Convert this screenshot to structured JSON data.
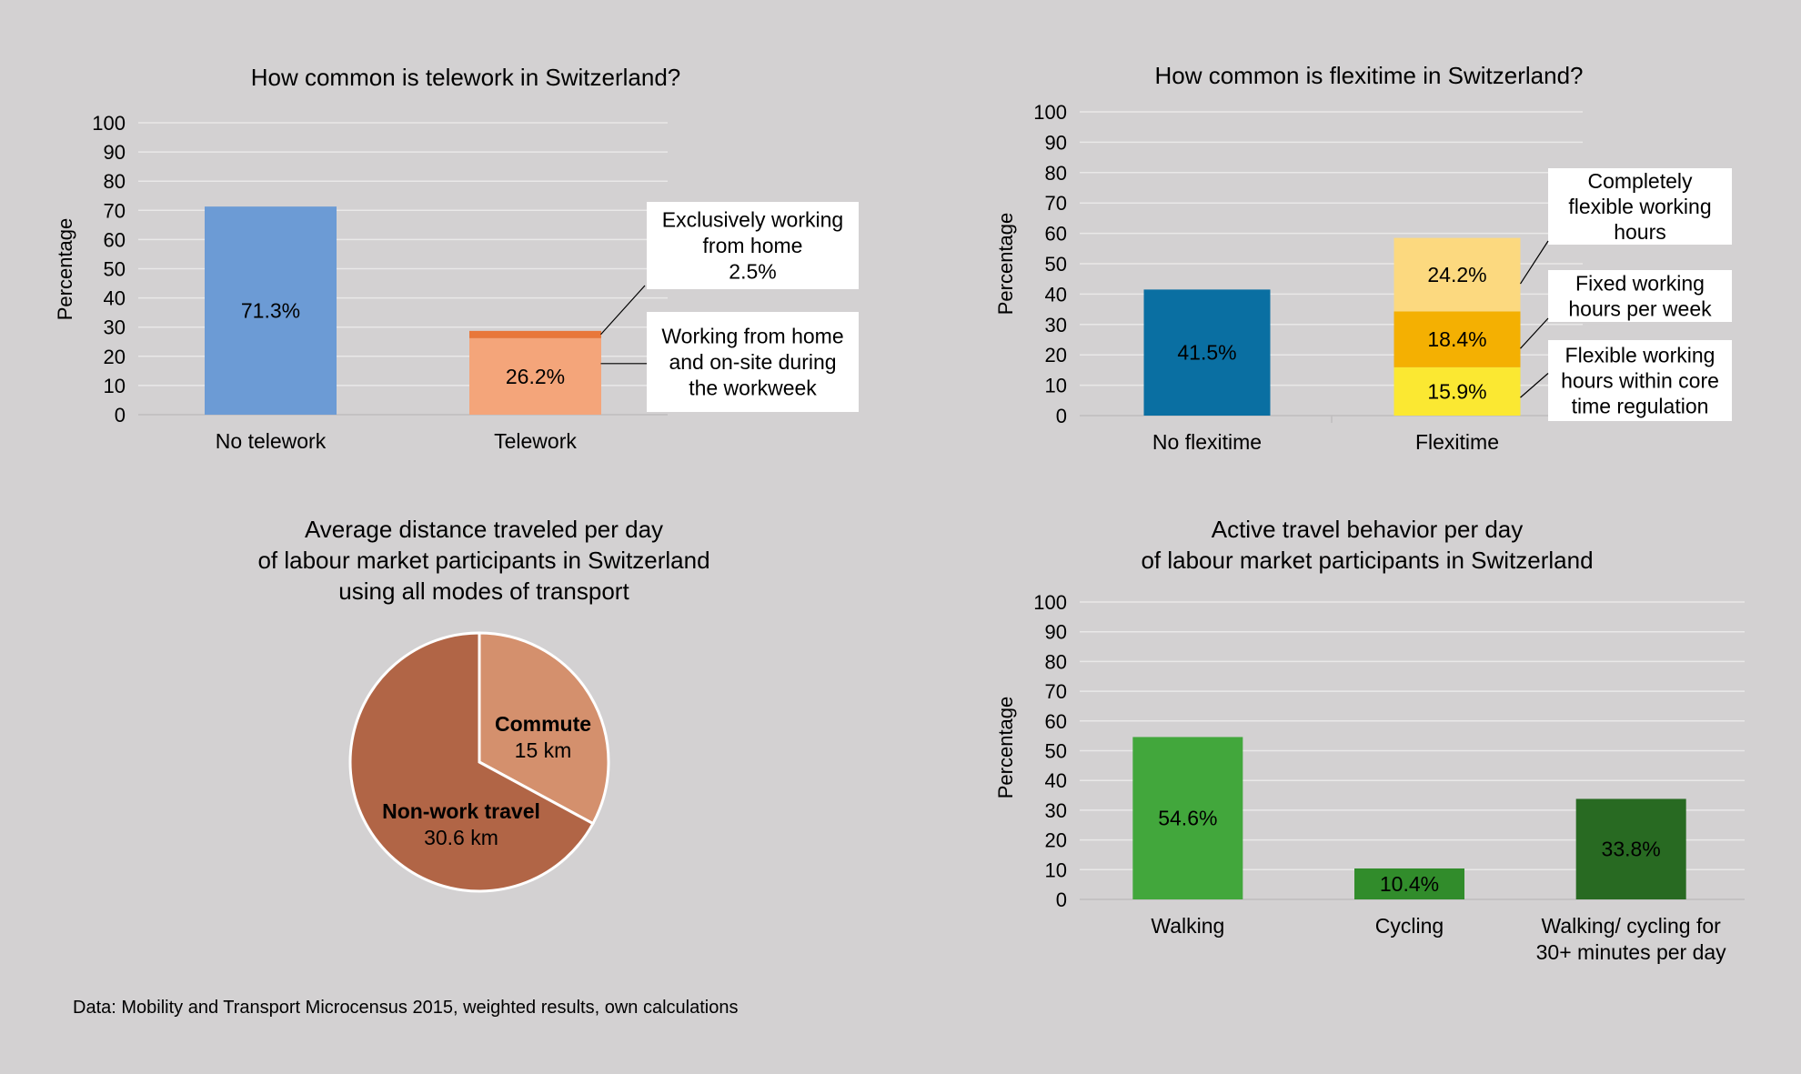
{
  "source_note": "Data: Mobility and Transport Microcensus 2015, weighted results, own calculations",
  "colors": {
    "background": "#d3d1d2",
    "grid": "#e9e8e8",
    "no_telework": "#6c9bd5",
    "telework_mixed": "#f4a57a",
    "telework_exclusive": "#e8773a",
    "no_flexitime": "#0a6fa2",
    "flex_core": "#fbe832",
    "flex_fixed": "#f4b002",
    "flex_complete": "#fcd97f",
    "walking": "#42a73c",
    "cycling": "#318c2b",
    "walk_cycle_30": "#286a22",
    "commute": "#d4906d",
    "nonwork": "#b16546"
  },
  "chart_data": [
    {
      "type": "bar",
      "stacked": true,
      "title": "How common is telework in Switzerland?",
      "ylabel": "Percentage",
      "xlabel": "",
      "ylim": [
        0,
        100
      ],
      "yticks": [
        0,
        10,
        20,
        30,
        40,
        50,
        60,
        70,
        80,
        90,
        100
      ],
      "grid": true,
      "categories": [
        "No telework",
        "Telework"
      ],
      "series": [
        {
          "name": "No telework",
          "values": [
            71.3,
            null
          ],
          "label": "71.3%",
          "color": "#6c9bd5"
        },
        {
          "name": "Working from home and on-site during the workweek",
          "values": [
            null,
            26.2
          ],
          "label": "26.2%",
          "color": "#f4a57a"
        },
        {
          "name": "Exclusively working from home",
          "values": [
            null,
            2.5
          ],
          "label": "",
          "color": "#e8773a"
        }
      ],
      "annotations": [
        {
          "lines": [
            "Exclusively working",
            "from home",
            "2.5%"
          ]
        },
        {
          "lines": [
            "Working from home",
            "and on-site during",
            "the workweek"
          ]
        }
      ]
    },
    {
      "type": "bar",
      "stacked": true,
      "title": "How common is flexitime in Switzerland?",
      "ylabel": "Percentage",
      "xlabel": "",
      "ylim": [
        0,
        100
      ],
      "yticks": [
        0,
        10,
        20,
        30,
        40,
        50,
        60,
        70,
        80,
        90,
        100
      ],
      "grid": true,
      "categories": [
        "No flexitime",
        "Flexitime"
      ],
      "series": [
        {
          "name": "No flexitime",
          "values": [
            41.5,
            null
          ],
          "label": "41.5%",
          "color": "#0a6fa2"
        },
        {
          "name": "Flexible working hours within core time regulation",
          "values": [
            null,
            15.9
          ],
          "label": "15.9%",
          "color": "#fbe832"
        },
        {
          "name": "Fixed working hours per week",
          "values": [
            null,
            18.4
          ],
          "label": "18.4%",
          "color": "#f4b002"
        },
        {
          "name": "Completely flexible working hours",
          "values": [
            null,
            24.2
          ],
          "label": "24.2%",
          "color": "#fcd97f"
        }
      ],
      "annotations": [
        {
          "lines": [
            "Completely",
            "flexible working",
            "hours"
          ]
        },
        {
          "lines": [
            "Fixed working",
            "hours per week"
          ]
        },
        {
          "lines": [
            "Flexible working",
            "hours within core",
            "time regulation"
          ]
        }
      ]
    },
    {
      "type": "pie",
      "title_lines": [
        "Average distance traveled per day",
        "of labour market participants in Switzerland",
        "using all modes of transport"
      ],
      "slices": [
        {
          "name": "Commute",
          "value": 15,
          "label": "15 km",
          "color": "#d4906d"
        },
        {
          "name": "Non-work travel",
          "value": 30.6,
          "label": "30.6 km",
          "color": "#b16546"
        }
      ]
    },
    {
      "type": "bar",
      "stacked": false,
      "title_lines": [
        "Active travel behavior per day",
        "of labour market participants in Switzerland"
      ],
      "ylabel": "Percentage",
      "xlabel": "",
      "ylim": [
        0,
        100
      ],
      "yticks": [
        0,
        10,
        20,
        30,
        40,
        50,
        60,
        70,
        80,
        90,
        100
      ],
      "grid": true,
      "categories": [
        [
          "Walking"
        ],
        [
          "Cycling"
        ],
        [
          "Walking/ cycling for",
          "30+ minutes per day"
        ]
      ],
      "values": [
        54.6,
        10.4,
        33.8
      ],
      "labels": [
        "54.6%",
        "10.4%",
        "33.8%"
      ],
      "colors": [
        "#42a73c",
        "#318c2b",
        "#286a22"
      ]
    }
  ]
}
